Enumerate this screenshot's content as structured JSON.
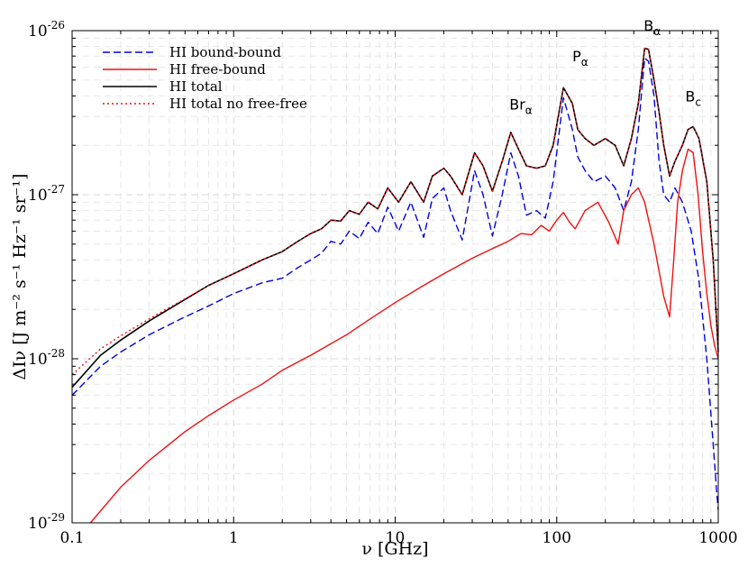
{
  "chart_data": {
    "type": "line",
    "title": "",
    "xlabel": "ν  [GHz]",
    "ylabel": "ΔIν  [J m⁻² s⁻¹ Hz⁻¹ sr⁻¹]",
    "x_scale": "log",
    "y_scale": "log",
    "xlim": [
      0.1,
      1000
    ],
    "ylim": [
      1e-29,
      1e-26
    ],
    "grid": true,
    "legend_position": "top-left",
    "x_ticks": [
      {
        "value": 0.1,
        "label": "0.1"
      },
      {
        "value": 1,
        "label": "1"
      },
      {
        "value": 10,
        "label": "10"
      },
      {
        "value": 100,
        "label": "100"
      },
      {
        "value": 1000,
        "label": "1000"
      }
    ],
    "y_ticks": [
      {
        "value": 1e-29,
        "base": "10",
        "exp": "-29"
      },
      {
        "value": 1e-28,
        "base": "10",
        "exp": "-28"
      },
      {
        "value": 1e-27,
        "base": "10",
        "exp": "-27"
      },
      {
        "value": 1e-26,
        "base": "10",
        "exp": "-26"
      }
    ],
    "series": [
      {
        "name": "HI bound-bound",
        "color": "#0000dd",
        "style": "dashed",
        "x": [
          0.1,
          0.15,
          0.2,
          0.3,
          0.5,
          0.7,
          1.0,
          1.5,
          2.0,
          2.5,
          3.0,
          3.5,
          4.0,
          4.6,
          5.2,
          6.0,
          6.8,
          7.8,
          9.0,
          10.5,
          12.5,
          15,
          17,
          20,
          22,
          26,
          31,
          35,
          40,
          46,
          52,
          58,
          65,
          75,
          85,
          95,
          110,
          125,
          135,
          150,
          170,
          200,
          230,
          260,
          290,
          320,
          350,
          370,
          400,
          430,
          460,
          500,
          540,
          600,
          680,
          760,
          850,
          930,
          980,
          1000
        ],
        "y": [
          6e-29,
          9e-29,
          1.1e-28,
          1.4e-28,
          1.8e-28,
          2.1e-28,
          2.5e-28,
          2.9e-28,
          3.1e-28,
          3.6e-28,
          4e-28,
          4.4e-28,
          5.2e-28,
          5e-28,
          6e-28,
          5.4e-28,
          6.8e-28,
          5.8e-28,
          8.4e-28,
          6e-28,
          9e-28,
          5.5e-28,
          9.5e-28,
          1.1e-27,
          8e-28,
          5.3e-28,
          1.4e-27,
          1e-27,
          5.6e-28,
          1e-27,
          1.8e-27,
          1.3e-27,
          7.5e-28,
          8e-28,
          7.2e-28,
          1.2e-27,
          3.9e-27,
          2.5e-27,
          1.7e-27,
          1.4e-27,
          1.2e-27,
          1.3e-27,
          1.1e-27,
          8e-28,
          1.2e-27,
          2.5e-27,
          6.8e-27,
          6.5e-27,
          4e-27,
          1.6e-27,
          1e-27,
          9e-28,
          1.1e-27,
          9e-28,
          6e-28,
          3e-28,
          1e-28,
          3e-29,
          1.5e-29,
          1.2e-29
        ]
      },
      {
        "name": "HI free-bound",
        "color": "#ee1111",
        "style": "solid",
        "x": [
          0.13,
          0.2,
          0.3,
          0.5,
          0.7,
          1.0,
          1.5,
          2.0,
          3.0,
          5.0,
          7.0,
          10,
          15,
          20,
          30,
          40,
          50,
          60,
          70,
          80,
          90,
          100,
          110,
          120,
          130,
          150,
          180,
          210,
          240,
          260,
          290,
          320,
          350,
          400,
          460,
          500,
          530,
          560,
          600,
          650,
          700,
          750,
          800,
          850,
          900,
          950,
          1000
        ],
        "y": [
          1e-29,
          1.65e-29,
          2.4e-29,
          3.6e-29,
          4.5e-29,
          5.6e-29,
          7e-29,
          8.5e-29,
          1.05e-28,
          1.4e-28,
          1.75e-28,
          2.2e-28,
          2.8e-28,
          3.3e-28,
          4.1e-28,
          4.7e-28,
          5.2e-28,
          5.8e-28,
          5.7e-28,
          6.5e-28,
          6e-28,
          7e-28,
          7.8e-28,
          6.8e-28,
          6.2e-28,
          8e-28,
          9e-28,
          6.8e-28,
          5e-28,
          8e-28,
          1e-27,
          1.1e-27,
          9e-28,
          5e-28,
          2.4e-28,
          1.8e-28,
          4e-28,
          9e-28,
          1.4e-27,
          1.9e-27,
          1.8e-27,
          1e-27,
          4.5e-28,
          2.5e-28,
          1.6e-28,
          1.2e-28,
          1e-28
        ]
      },
      {
        "name": "HI total",
        "color": "#000000",
        "style": "solid",
        "x": [
          0.1,
          0.15,
          0.2,
          0.3,
          0.5,
          0.7,
          1.0,
          1.5,
          2.0,
          2.5,
          3.0,
          3.5,
          4.0,
          4.6,
          5.2,
          6.0,
          6.8,
          7.8,
          9.0,
          10.5,
          12.5,
          15,
          17,
          20,
          22,
          26,
          31,
          35,
          40,
          46,
          52,
          58,
          65,
          75,
          85,
          95,
          110,
          125,
          135,
          150,
          170,
          200,
          230,
          260,
          290,
          320,
          350,
          370,
          400,
          430,
          460,
          500,
          540,
          600,
          650,
          700,
          760,
          850,
          930,
          1000
        ],
        "y": [
          6.7e-29,
          1.05e-28,
          1.3e-28,
          1.7e-28,
          2.3e-28,
          2.8e-28,
          3.3e-28,
          4e-28,
          4.5e-28,
          5.2e-28,
          5.8e-28,
          6.2e-28,
          7e-28,
          6.9e-28,
          8e-28,
          7.6e-28,
          9e-28,
          8.2e-28,
          1.1e-27,
          9e-28,
          1.2e-27,
          9e-28,
          1.3e-27,
          1.45e-27,
          1.3e-27,
          1e-27,
          1.8e-27,
          1.5e-27,
          1.05e-27,
          1.6e-27,
          2.4e-27,
          1.9e-27,
          1.5e-27,
          1.45e-27,
          1.5e-27,
          2e-27,
          4.5e-27,
          3.6e-27,
          2.5e-27,
          2.2e-27,
          2e-27,
          2.2e-27,
          2e-27,
          1.5e-27,
          2.2e-27,
          3.6e-27,
          7.8e-27,
          7.7e-27,
          5e-27,
          3.2e-27,
          2e-27,
          1.3e-27,
          1.6e-27,
          2e-27,
          2.5e-27,
          2.6e-27,
          2.2e-27,
          1.2e-27,
          4e-28,
          1.1e-28
        ]
      },
      {
        "name": "HI total no free-free",
        "color": "#ee1111",
        "style": "dotted",
        "x": [
          0.1,
          0.15,
          0.2,
          0.3,
          0.5,
          0.7,
          1.0,
          1.5,
          2.0,
          2.5,
          3.0,
          3.5,
          4.0,
          4.6,
          5.2,
          6.0,
          6.8,
          7.8,
          9.0,
          10.5,
          12.5,
          15,
          17,
          20,
          22,
          26,
          31,
          35,
          40,
          46,
          52,
          58,
          65,
          75,
          85,
          95,
          110,
          125,
          135,
          150,
          170,
          200,
          230,
          260,
          290,
          320,
          350,
          370,
          400,
          430,
          460,
          500,
          540,
          600,
          650,
          700,
          760,
          850,
          930,
          1000
        ],
        "y": [
          8e-29,
          1.15e-28,
          1.38e-28,
          1.75e-28,
          2.32e-28,
          2.8e-28,
          3.3e-28,
          4e-28,
          4.5e-28,
          5.2e-28,
          5.8e-28,
          6.2e-28,
          7e-28,
          6.9e-28,
          8e-28,
          7.6e-28,
          9e-28,
          8.2e-28,
          1.1e-27,
          9e-28,
          1.2e-27,
          9e-28,
          1.3e-27,
          1.45e-27,
          1.3e-27,
          1e-27,
          1.8e-27,
          1.5e-27,
          1.05e-27,
          1.6e-27,
          2.4e-27,
          1.9e-27,
          1.5e-27,
          1.45e-27,
          1.5e-27,
          2e-27,
          4.5e-27,
          3.6e-27,
          2.5e-27,
          2.2e-27,
          2e-27,
          2.2e-27,
          2e-27,
          1.5e-27,
          2.2e-27,
          3.6e-27,
          7.8e-27,
          7.7e-27,
          5e-27,
          3.2e-27,
          2e-27,
          1.3e-27,
          1.6e-27,
          2e-27,
          2.5e-27,
          2.6e-27,
          2.2e-27,
          1.2e-27,
          4e-28,
          1.1e-28
        ]
      }
    ],
    "annotations": [
      {
        "base": "Br",
        "sub": "α",
        "x": 60,
        "y": 3.3e-27
      },
      {
        "base": "P",
        "sub": "α",
        "x": 140,
        "y": 6.5e-27
      },
      {
        "base": "B",
        "sub": "α",
        "x": 390,
        "y": 1e-26
      },
      {
        "base": "B",
        "sub": "c",
        "x": 700,
        "y": 3.7e-27
      }
    ]
  }
}
